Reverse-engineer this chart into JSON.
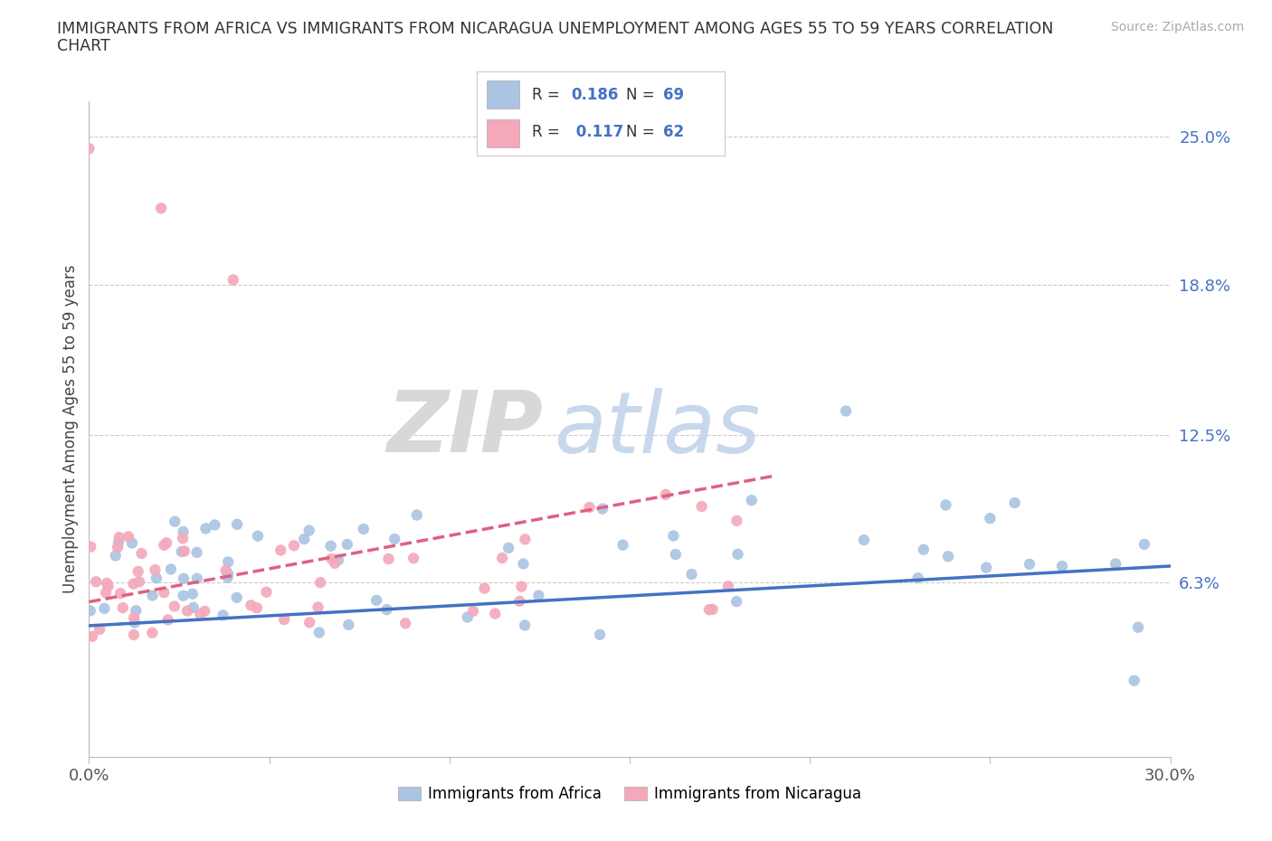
{
  "title_line1": "IMMIGRANTS FROM AFRICA VS IMMIGRANTS FROM NICARAGUA UNEMPLOYMENT AMONG AGES 55 TO 59 YEARS CORRELATION",
  "title_line2": "CHART",
  "source": "Source: ZipAtlas.com",
  "ylabel": "Unemployment Among Ages 55 to 59 years",
  "xlim": [
    0.0,
    0.3
  ],
  "ylim": [
    -0.01,
    0.265
  ],
  "ytick_positions": [
    0.063,
    0.125,
    0.188,
    0.25
  ],
  "ytick_labels": [
    "6.3%",
    "12.5%",
    "18.8%",
    "25.0%"
  ],
  "africa_color": "#aac4e2",
  "nicaragua_color": "#f4a8ba",
  "africa_line_color": "#4472c4",
  "nicaragua_line_color": "#e06080",
  "legend_africa_R": "0.186",
  "legend_africa_N": "69",
  "legend_nicaragua_R": "0.117",
  "legend_nicaragua_N": "62",
  "watermark_zip": "ZIP",
  "watermark_atlas": "atlas",
  "seed": 12345
}
